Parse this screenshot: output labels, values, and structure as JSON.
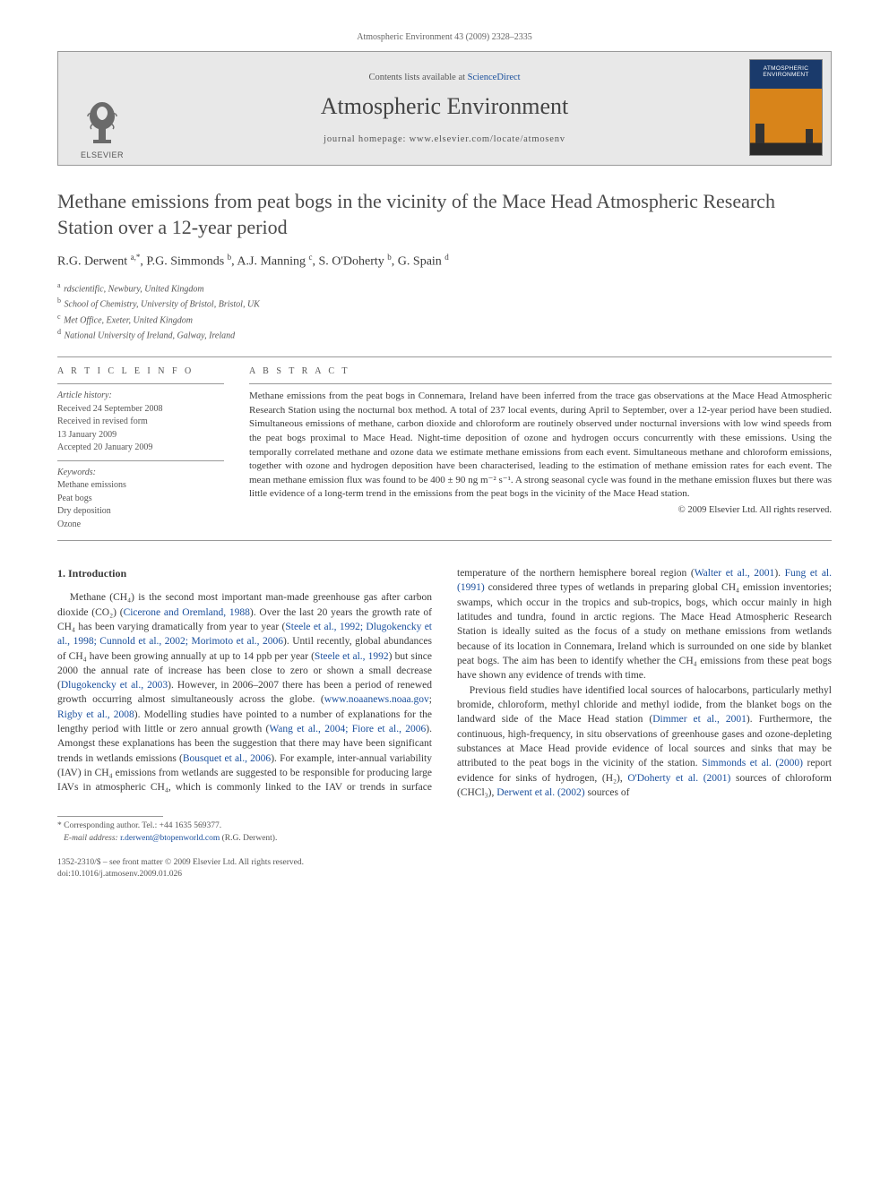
{
  "header_citation": "Atmospheric Environment 43 (2009) 2328–2335",
  "banner": {
    "publisher_label": "ELSEVIER",
    "contents_prefix": "Contents lists available at ",
    "contents_link": "ScienceDirect",
    "journal_name": "Atmospheric Environment",
    "homepage_label": "journal homepage: www.elsevier.com/locate/atmosenv",
    "cover_label_1": "ATMOSPHERIC",
    "cover_label_2": "ENVIRONMENT"
  },
  "article": {
    "title": "Methane emissions from peat bogs in the vicinity of the Mace Head Atmospheric Research Station over a 12-year period",
    "authors_html": "R.G. Derwent <sup>a,*</sup>, P.G. Simmonds <sup>b</sup>, A.J. Manning <sup>c</sup>, S. O'Doherty <sup>b</sup>, G. Spain <sup>d</sup>",
    "affiliations": [
      {
        "sup": "a",
        "text": "rdscientific, Newbury, United Kingdom"
      },
      {
        "sup": "b",
        "text": "School of Chemistry, University of Bristol, Bristol, UK"
      },
      {
        "sup": "c",
        "text": "Met Office, Exeter, United Kingdom"
      },
      {
        "sup": "d",
        "text": "National University of Ireland, Galway, Ireland"
      }
    ]
  },
  "article_info": {
    "heading": "A R T I C L E   I N F O",
    "history_label": "Article history:",
    "history": [
      "Received 24 September 2008",
      "Received in revised form",
      "13 January 2009",
      "Accepted 20 January 2009"
    ],
    "keywords_label": "Keywords:",
    "keywords": [
      "Methane emissions",
      "Peat bogs",
      "Dry deposition",
      "Ozone"
    ]
  },
  "abstract": {
    "heading": "A B S T R A C T",
    "text": "Methane emissions from the peat bogs in Connemara, Ireland have been inferred from the trace gas observations at the Mace Head Atmospheric Research Station using the nocturnal box method. A total of 237 local events, during April to September, over a 12-year period have been studied. Simultaneous emissions of methane, carbon dioxide and chloroform are routinely observed under nocturnal inversions with low wind speeds from the peat bogs proximal to Mace Head. Night-time deposition of ozone and hydrogen occurs concurrently with these emissions. Using the temporally correlated methane and ozone data we estimate methane emissions from each event. Simultaneous methane and chloroform emissions, together with ozone and hydrogen deposition have been characterised, leading to the estimation of methane emission rates for each event. The mean methane emission flux was found to be 400 ± 90 ng m⁻² s⁻¹. A strong seasonal cycle was found in the methane emission fluxes but there was little evidence of a long-term trend in the emissions from the peat bogs in the vicinity of the Mace Head station.",
    "copyright": "© 2009 Elsevier Ltd. All rights reserved."
  },
  "body": {
    "section_heading": "1. Introduction",
    "para1_pre": "Methane (CH₄) is the second most important man-made greenhouse gas after carbon dioxide (CO₂) (",
    "ref1": "Cicerone and Oremland, 1988",
    "para1_mid1": "). Over the last 20 years the growth rate of CH₄ has been varying dramatically from year to year (",
    "ref2": "Steele et al., 1992; Dlugokencky et al., 1998; Cunnold et al., 2002; Morimoto et al., 2006",
    "para1_mid2": "). Until recently, global abundances of CH₄ have been growing annually at up to 14 ppb per year (",
    "ref3": "Steele et al., 1992",
    "para1_mid3": ") but since 2000 the annual rate of increase has been close to zero or shown a small decrease (",
    "ref4": "Dlugokencky et al., 2003",
    "para1_mid4": "). However, in 2006–2007 there has been a period of renewed growth occurring almost simultaneously across the globe. (",
    "ref5": "www.noaanews.noaa.gov",
    "para1_mid5": "; ",
    "ref6": "Rigby et al., 2008",
    "para1_mid6": "). Modelling studies have pointed to a number of explanations for the lengthy period with little or zero annual growth (",
    "ref7": "Wang et al., 2004; Fiore et al., 2006",
    "para1_mid7": "). Amongst these explanations has been the suggestion that there may have been significant trends in wetlands emissions (",
    "ref8": "Bousquet et al., 2006",
    "para1_mid8": "). For example, inter-annual variability (IAV) in CH₄ emissions from wetlands are ",
    "para1_col2a": "suggested to be responsible for producing large IAVs in atmospheric CH₄, which is commonly linked to the IAV or trends in surface temperature of the northern hemisphere boreal region (",
    "ref9": "Walter et al., 2001",
    "para1_col2b": "). ",
    "ref10": "Fung et al. (1991)",
    "para1_col2c": " considered three types of wetlands in preparing global CH₄ emission inventories; swamps, which occur in the tropics and sub-tropics, bogs, which occur mainly in high latitudes and tundra, found in arctic regions. The Mace Head Atmospheric Research Station is ideally suited as the focus of a study on methane emissions from wetlands because of its location in Connemara, Ireland which is surrounded on one side by blanket peat bogs. The aim has been to identify whether the CH₄ emissions from these peat bogs have shown any evidence of trends with time.",
    "para2_a": "Previous field studies have identified local sources of halocarbons, particularly methyl bromide, chloroform, methyl chloride and methyl iodide, from the blanket bogs on the landward side of the Mace Head station (",
    "ref11": "Dimmer et al., 2001",
    "para2_b": "). Furthermore, the continuous, high-frequency, in situ observations of greenhouse gases and ozone-depleting substances at Mace Head provide evidence of local sources and sinks that may be attributed to the peat bogs in the vicinity of the station. ",
    "ref12": "Simmonds et al. (2000)",
    "para2_c": " report evidence for sinks of hydrogen, (H₂), ",
    "ref13": "O'Doherty et al. (2001)",
    "para2_d": " sources of chloroform (CHCl₃), ",
    "ref14": "Derwent et al. (2002)",
    "para2_e": " sources of"
  },
  "footnote": {
    "corr_label": "* Corresponding author. Tel.: +44 1635 569377.",
    "email_label": "E-mail address: ",
    "email": "r.derwent@btopenworld.com",
    "email_suffix": " (R.G. Derwent)."
  },
  "footer": {
    "line1": "1352-2310/$ – see front matter © 2009 Elsevier Ltd. All rights reserved.",
    "line2": "doi:10.1016/j.atmosenv.2009.01.026"
  },
  "colors": {
    "link": "#1a4f9c",
    "text": "#3a3a3a",
    "muted": "#555555",
    "banner_bg": "#e8e8e8",
    "cover_top": "#1a3a6b",
    "cover_bottom": "#d8841a"
  }
}
